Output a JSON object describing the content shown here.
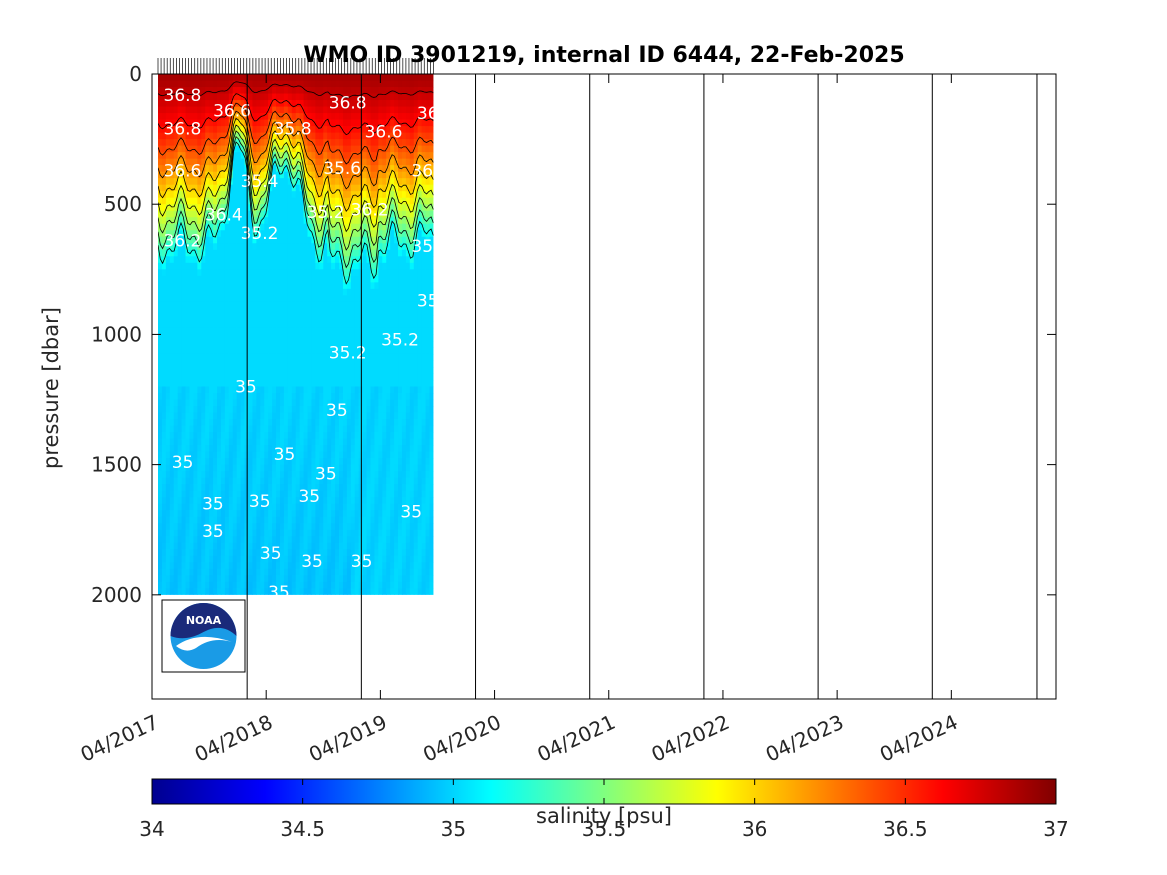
{
  "chart_data": {
    "type": "heatmap",
    "title": "WMO ID 3901219, internal ID 6444, 22-Feb-2025",
    "ylabel": "pressure [dbar]",
    "xlabel": "",
    "y_reversed": true,
    "ylim": [
      0,
      2400
    ],
    "yticks": [
      "0",
      "500",
      "1000",
      "1500",
      "2000"
    ],
    "y_tick_values": [
      0,
      500,
      1000,
      1500,
      2000
    ],
    "xlim": [
      "2017-04",
      "2025-03"
    ],
    "xticks": [
      "04/2017",
      "04/2018",
      "04/2019",
      "04/2020",
      "04/2021",
      "04/2022",
      "04/2023",
      "04/2024"
    ],
    "profile_span": [
      "2017-04",
      "2019-08"
    ],
    "max_pressure": 2000,
    "vertical_lines": [
      "2018-02",
      "2019-02",
      "2020-02",
      "2021-02",
      "2022-02",
      "2023-02",
      "2024-02",
      "2025-01"
    ],
    "colorbar": {
      "label": "salinity [psu]",
      "range": [
        34,
        37
      ],
      "ticks": [
        "34",
        "34.5",
        "35",
        "35.5",
        "36",
        "36.5",
        "37"
      ],
      "colormap": "jet"
    },
    "contour_labels": [
      "35",
      "35.2",
      "35.4",
      "35.6",
      "35.8",
      "36",
      "36.2",
      "36.4",
      "36.6",
      "36.8"
    ],
    "logo": "noaa-logo"
  }
}
